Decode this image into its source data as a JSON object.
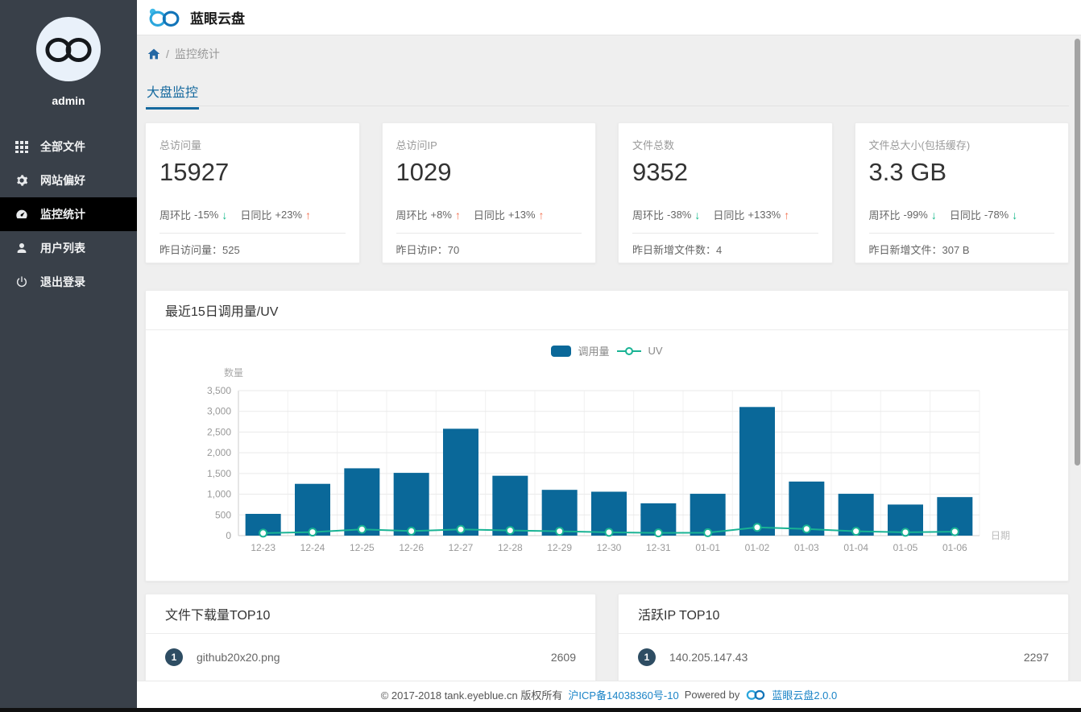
{
  "app": {
    "title": "蓝眼云盘"
  },
  "sidebar": {
    "username": "admin",
    "items": [
      {
        "label": "全部文件",
        "icon": "grid-icon"
      },
      {
        "label": "网站偏好",
        "icon": "gear-icon"
      },
      {
        "label": "监控统计",
        "icon": "gauge-icon",
        "active": true
      },
      {
        "label": "用户列表",
        "icon": "user-icon"
      },
      {
        "label": "退出登录",
        "icon": "power-icon"
      }
    ]
  },
  "breadcrumb": {
    "separator": "/",
    "current": "监控统计"
  },
  "tabs": [
    {
      "label": "大盘监控",
      "active": true
    }
  ],
  "icons": {
    "up_arrow": "↑",
    "down_arrow": "↓"
  },
  "stat_cards": [
    {
      "title": "总访问量",
      "value": "15927",
      "week_label": "周环比",
      "week_value": "-15%",
      "week_arrow": "↓",
      "week_dir": "down",
      "day_label": "日同比",
      "day_value": "+23%",
      "day_arrow": "↑",
      "day_dir": "up",
      "footer_label": "昨日访问量：",
      "footer_value": "525"
    },
    {
      "title": "总访问IP",
      "value": "1029",
      "week_label": "周环比",
      "week_value": "+8%",
      "week_arrow": "↑",
      "week_dir": "up",
      "day_label": "日同比",
      "day_value": "+13%",
      "day_arrow": "↑",
      "day_dir": "up",
      "footer_label": "昨日访IP：",
      "footer_value": "70"
    },
    {
      "title": "文件总数",
      "value": "9352",
      "week_label": "周环比",
      "week_value": "-38%",
      "week_arrow": "↓",
      "week_dir": "down",
      "day_label": "日同比",
      "day_value": "+133%",
      "day_arrow": "↑",
      "day_dir": "up",
      "footer_label": "昨日新增文件数：",
      "footer_value": "4"
    },
    {
      "title": "文件总大小(包括缓存)",
      "value": "3.3 GB",
      "week_label": "周环比",
      "week_value": "-99%",
      "week_arrow": "↓",
      "week_dir": "down",
      "day_label": "日同比",
      "day_value": "-78%",
      "day_arrow": "↓",
      "day_dir": "down",
      "footer_label": "昨日新增文件：",
      "footer_value": "307 B"
    }
  ],
  "chart_card": {
    "title": "最近15日调用量/UV"
  },
  "chart_data": {
    "type": "bar",
    "title": "最近15日调用量/UV",
    "categories": [
      "12-23",
      "12-24",
      "12-25",
      "12-26",
      "12-27",
      "12-28",
      "12-29",
      "12-30",
      "12-31",
      "01-01",
      "01-02",
      "01-03",
      "01-04",
      "01-05",
      "01-06"
    ],
    "series": [
      {
        "name": "调用量",
        "type": "bar",
        "color": "#0a6899",
        "values": [
          525,
          1250,
          1625,
          1515,
          2580,
          1445,
          1105,
          1060,
          780,
          1010,
          3105,
          1305,
          1010,
          750,
          930
        ]
      },
      {
        "name": "UV",
        "type": "line",
        "color": "#19b394",
        "values": [
          60,
          85,
          150,
          110,
          150,
          125,
          105,
          80,
          65,
          70,
          200,
          160,
          105,
          80,
          95
        ]
      }
    ],
    "xlabel": "日期",
    "ylabel": "数量",
    "ylim": [
      0,
      3500
    ],
    "ytick_step": 500,
    "yticks": [
      "0",
      "500",
      "1,000",
      "1,500",
      "2,000",
      "2,500",
      "3,000",
      "3,500"
    ],
    "grid": true,
    "legend_position": "top-center"
  },
  "top_lists": [
    {
      "title": "文件下载量TOP10",
      "rows": [
        {
          "rank": "1",
          "name": "github20x20.png",
          "value": "2609"
        }
      ]
    },
    {
      "title": "活跃IP TOP10",
      "rows": [
        {
          "rank": "1",
          "name": "140.205.147.43",
          "value": "2297"
        }
      ]
    }
  ],
  "footer": {
    "copyright": "© 2017-2018 tank.eyeblue.cn 版权所有",
    "icp": "沪ICP备14038360号-10",
    "powered_by": "Powered by",
    "product": "蓝眼云盘2.0.0"
  },
  "colors": {
    "sidebar_bg": "#394049",
    "accent_blue": "#15699e",
    "bar_blue": "#0a6899",
    "uv_teal": "#19b394",
    "up_orange": "#f4704f",
    "down_green": "#13b888",
    "link_blue": "#1b84c7"
  }
}
